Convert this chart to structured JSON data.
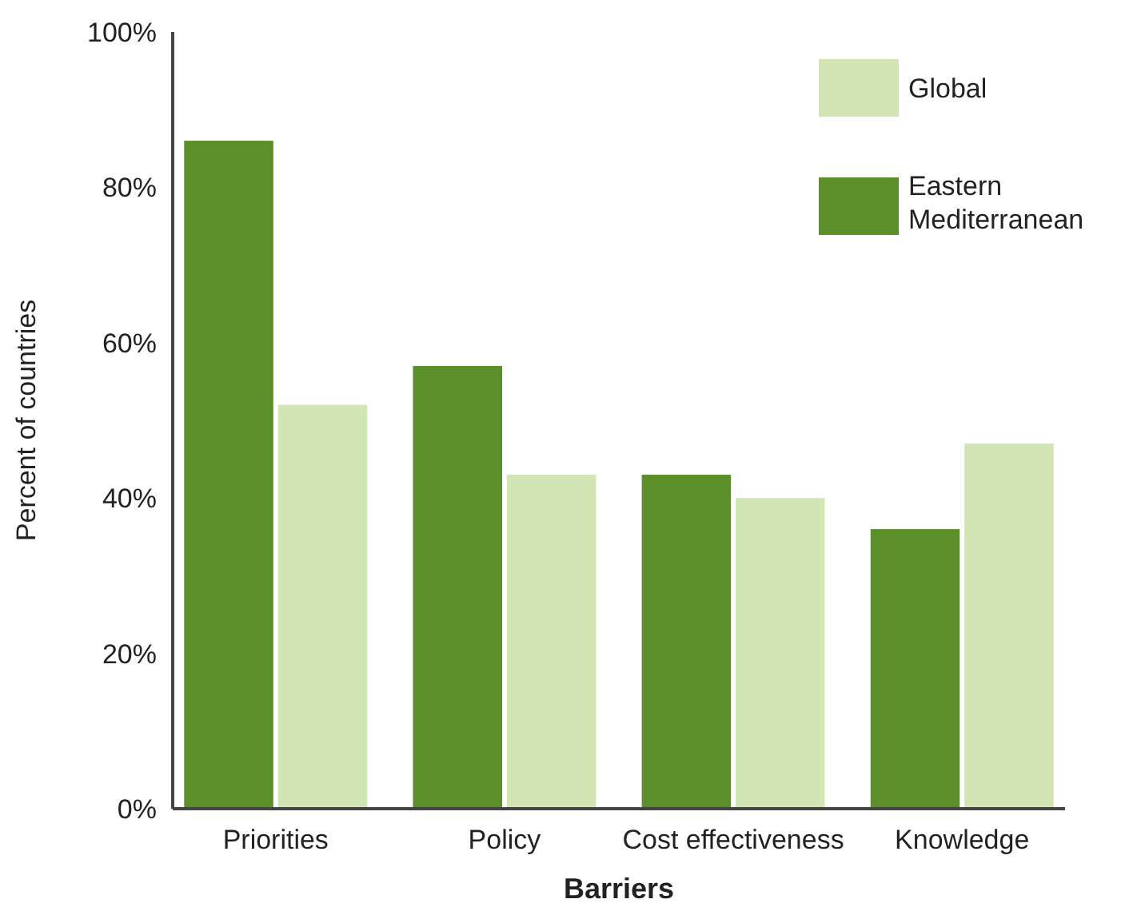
{
  "chart_data": {
    "type": "bar",
    "xlabel": "Barriers",
    "ylabel": "Percent of countries",
    "categories": [
      "Priorities",
      "Policy",
      "Cost effectiveness",
      "Knowledge"
    ],
    "series": [
      {
        "name": "Eastern Mediterranean",
        "color": "#5a8f29",
        "values": [
          86,
          57,
          43,
          36
        ]
      },
      {
        "name": "Global",
        "color": "#d1e5b5",
        "values": [
          52,
          43,
          40,
          47
        ]
      }
    ],
    "ylim": [
      0,
      100
    ],
    "yticks": [
      {
        "value": 0,
        "label": "0%"
      },
      {
        "value": 20,
        "label": "20%"
      },
      {
        "value": 40,
        "label": "40%"
      },
      {
        "value": 60,
        "label": "60%"
      },
      {
        "value": 80,
        "label": "80%"
      },
      {
        "value": 100,
        "label": "100%"
      }
    ],
    "grid": false,
    "legend": "top right"
  }
}
